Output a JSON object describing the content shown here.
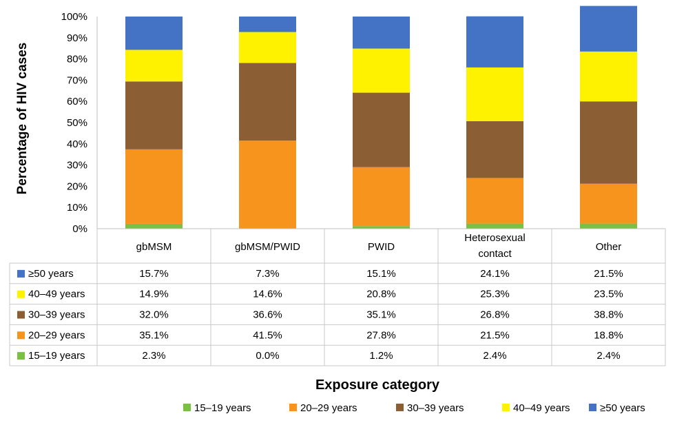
{
  "chart_data": {
    "type": "bar",
    "stacked": true,
    "percent_stacked": true,
    "categories": [
      "gbMSM",
      "gbMSM/PWID",
      "PWID",
      "Heterosexual contact",
      "Other"
    ],
    "category_lines": [
      [
        "gbMSM"
      ],
      [
        "gbMSM/PWID"
      ],
      [
        "PWID"
      ],
      [
        "Heterosexual",
        "contact"
      ],
      [
        "Other"
      ]
    ],
    "series": [
      {
        "name": "15–19 years",
        "color": "#7ac143",
        "values": [
          2.3,
          0.0,
          1.2,
          2.4,
          2.4
        ],
        "labels": [
          "2.3%",
          "0.0%",
          "1.2%",
          "2.4%",
          "2.4%"
        ]
      },
      {
        "name": "20–29 years",
        "color": "#f7941d",
        "values": [
          35.1,
          41.5,
          27.8,
          21.5,
          18.8
        ],
        "labels": [
          "35.1%",
          "41.5%",
          "27.8%",
          "21.5%",
          "18.8%"
        ]
      },
      {
        "name": "30–39 years",
        "color": "#8b5e34",
        "values": [
          32.0,
          36.6,
          35.1,
          26.8,
          38.8
        ],
        "labels": [
          "32.0%",
          "36.6%",
          "35.1%",
          "26.8%",
          "38.8%"
        ]
      },
      {
        "name": "40–49 years",
        "color": "#fff200",
        "values": [
          14.9,
          14.6,
          20.8,
          25.3,
          23.5
        ],
        "labels": [
          "14.9%",
          "14.6%",
          "20.8%",
          "25.3%",
          "23.5%"
        ]
      },
      {
        "name": "≥50 years",
        "color": "#4472c4",
        "values": [
          15.7,
          7.3,
          15.1,
          24.1,
          21.5
        ],
        "labels": [
          "15.7%",
          "7.3%",
          "15.1%",
          "24.1%",
          "21.5%"
        ]
      }
    ],
    "ylabel": "Percentage of HIV cases",
    "xlabel": "Exposure category",
    "ylim": [
      0,
      100
    ],
    "yticks": [
      "0%",
      "10%",
      "20%",
      "30%",
      "40%",
      "50%",
      "60%",
      "70%",
      "80%",
      "90%",
      "100%"
    ],
    "legend_position": "bottom",
    "grid": false,
    "data_table": true
  }
}
